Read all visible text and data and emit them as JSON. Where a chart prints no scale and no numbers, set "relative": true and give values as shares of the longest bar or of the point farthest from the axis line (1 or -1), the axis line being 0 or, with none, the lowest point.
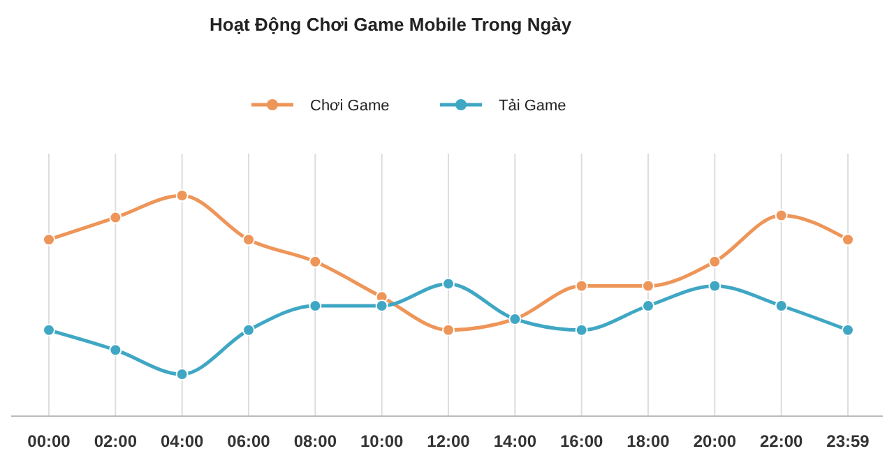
{
  "chart_data": {
    "type": "line",
    "title": "Hoạt Động Chơi Game Mobile Trong Ngày",
    "relative": true,
    "categories": [
      "00:00",
      "02:00",
      "04:00",
      "06:00",
      "08:00",
      "10:00",
      "12:00",
      "14:00",
      "16:00",
      "18:00",
      "20:00",
      "22:00",
      "23:59"
    ],
    "series": [
      {
        "name": "Chơi Game",
        "color": "#ee9559",
        "values": [
          0.8,
          0.9,
          1,
          0.8,
          0.7,
          0.54,
          0.39,
          0.44,
          0.59,
          0.59,
          0.7,
          0.91,
          0.8
        ]
      },
      {
        "name": "Tải Game",
        "color": "#3fa7c4",
        "values": [
          0.39,
          0.3,
          0.19,
          0.39,
          0.5,
          0.5,
          0.6,
          0.44,
          0.39,
          0.5,
          0.59,
          0.5,
          0.39
        ]
      }
    ],
    "grid": "x",
    "legend": "top",
    "marker": "circle",
    "line_style": "solid"
  }
}
